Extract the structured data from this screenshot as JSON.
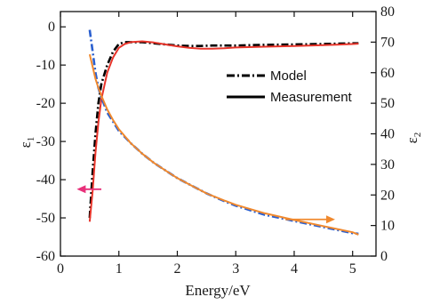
{
  "chart_data": {
    "type": "line",
    "xlabel": "Energy/eV",
    "ylabel_left": "ε",
    "ylabel_left_sub": "1",
    "ylabel_right": "ε",
    "ylabel_right_sub": "2",
    "xlim": [
      0,
      5.4
    ],
    "ylim_left": [
      -60,
      4
    ],
    "ylim_right": [
      0,
      80
    ],
    "xticks": [
      0,
      1,
      2,
      3,
      4,
      5
    ],
    "yticks_left": [
      0,
      -10,
      -20,
      -30,
      -40,
      -50,
      -60
    ],
    "yticks_left_labels": [
      "0",
      "-10",
      "-20",
      "-30",
      "-40",
      "-50",
      "-60"
    ],
    "yticks_right": [
      0,
      10,
      20,
      30,
      40,
      50,
      60,
      70,
      80
    ],
    "legend": [
      {
        "label": "Model",
        "style": "dash-dot"
      },
      {
        "label": "Measurement",
        "style": "solid"
      }
    ],
    "legend_position": "upper-right",
    "grid": false,
    "series": [
      {
        "axis": "left",
        "style": "dash-dot",
        "color": "#000000",
        "x": [
          0.5,
          0.55,
          0.6,
          0.65,
          0.7,
          0.8,
          0.9,
          1.0,
          1.1,
          1.2,
          1.4,
          1.6,
          1.8,
          2.0,
          2.2,
          2.4,
          2.6,
          2.8,
          3.0,
          3.5,
          4.0,
          4.5,
          5.0,
          5.1
        ],
        "y": [
          -50,
          -38,
          -28,
          -20,
          -15,
          -10,
          -6.5,
          -4.5,
          -4.0,
          -4.0,
          -4.0,
          -4.3,
          -4.6,
          -4.9,
          -5.0,
          -5.0,
          -4.9,
          -4.9,
          -4.9,
          -4.7,
          -4.6,
          -4.5,
          -4.3,
          -4.3
        ]
      },
      {
        "axis": "left",
        "style": "solid",
        "color": "#e8342a",
        "x": [
          0.5,
          0.55,
          0.6,
          0.65,
          0.7,
          0.8,
          0.9,
          1.0,
          1.1,
          1.2,
          1.4,
          1.6,
          1.8,
          2.0,
          2.2,
          2.4,
          2.6,
          2.8,
          3.0,
          3.5,
          4.0,
          4.5,
          5.0,
          5.1
        ],
        "y": [
          -51,
          -43,
          -33,
          -25,
          -19,
          -12,
          -8,
          -5.5,
          -4.5,
          -4.0,
          -3.8,
          -4.1,
          -4.6,
          -5.1,
          -5.5,
          -5.7,
          -5.7,
          -5.6,
          -5.4,
          -5.2,
          -5.0,
          -4.8,
          -4.5,
          -4.4
        ]
      },
      {
        "axis": "right",
        "style": "dash-dot",
        "color": "#2a5fcf",
        "x": [
          0.5,
          0.55,
          0.6,
          0.65,
          0.7,
          0.8,
          0.9,
          1.0,
          1.2,
          1.4,
          1.6,
          1.8,
          2.0,
          2.2,
          2.5,
          2.8,
          3.0,
          3.5,
          4.0,
          4.5,
          5.0,
          5.1
        ],
        "y": [
          74,
          67,
          60,
          55,
          52,
          47,
          44,
          41,
          37,
          33.5,
          30.5,
          28,
          25.5,
          23.5,
          20.5,
          18,
          16.5,
          13.5,
          11.5,
          9.5,
          7.5,
          7.3
        ]
      },
      {
        "axis": "right",
        "style": "solid",
        "color": "#f0892e",
        "x": [
          0.5,
          0.55,
          0.6,
          0.65,
          0.7,
          0.8,
          0.9,
          1.0,
          1.2,
          1.4,
          1.6,
          1.8,
          2.0,
          2.2,
          2.5,
          2.8,
          3.0,
          3.5,
          4.0,
          4.5,
          5.0,
          5.1
        ],
        "y": [
          66,
          62,
          58,
          55,
          52.5,
          48,
          44.5,
          41.5,
          37,
          33.5,
          30.5,
          28,
          25.5,
          23.5,
          20.5,
          18.2,
          16.8,
          14,
          11.8,
          9.8,
          7.8,
          7.0
        ]
      }
    ],
    "annotations": [
      {
        "type": "arrow",
        "direction": "left",
        "color": "#e8307a",
        "x_from": 0.7,
        "x_to": 0.28,
        "y": -42.5,
        "axis": "left"
      },
      {
        "type": "arrow",
        "direction": "right",
        "color": "#f0892e",
        "x_from": 3.85,
        "x_to": 4.7,
        "y": 12,
        "axis": "right"
      }
    ]
  }
}
